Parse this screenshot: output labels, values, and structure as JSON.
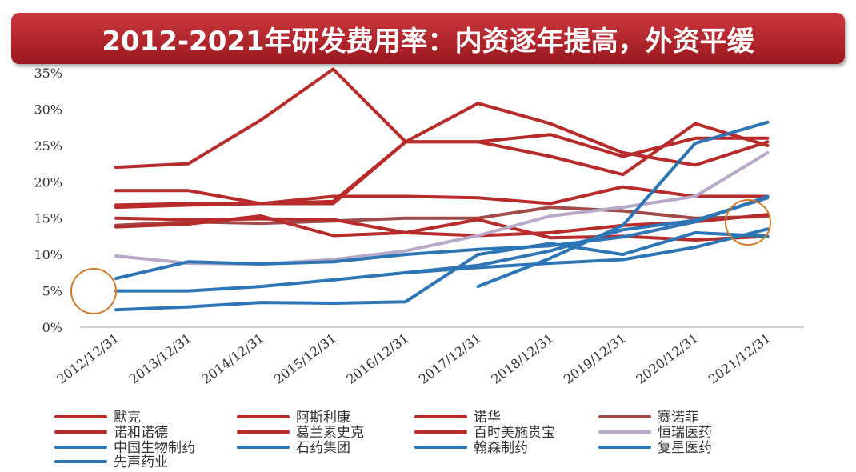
{
  "title": "2012-2021年研发费用率：内资逐年提高，外资平缓",
  "chart_data": {
    "type": "line",
    "title": "2012-2021年研发费用率：内资逐年提高，外资平缓",
    "x": [
      "2012/12/31",
      "2013/12/31",
      "2014/12/31",
      "2015/12/31",
      "2016/12/31",
      "2017/12/31",
      "2018/12/31",
      "2019/12/31",
      "2020/12/31",
      "2021/12/31"
    ],
    "y_ticks": [
      "0%",
      "5%",
      "10%",
      "15%",
      "20%",
      "25%",
      "30%",
      "35%"
    ],
    "ylim": [
      0,
      35
    ],
    "y_unit": "%",
    "grid": false,
    "legend_position": "bottom",
    "series": [
      {
        "name": "默克",
        "color": "#b72b2b",
        "values": [
          16.5,
          16.8,
          17.0,
          17.3,
          25.5,
          25.5,
          23.5,
          21.0,
          28.0,
          25.0
        ]
      },
      {
        "name": "阿斯利康",
        "color": "#b72b2b",
        "values": [
          22.0,
          22.5,
          28.5,
          35.5,
          25.5,
          25.5,
          26.5,
          23.5,
          26.0,
          26.0
        ]
      },
      {
        "name": "诺华",
        "color": "#b72b2b",
        "values": [
          16.8,
          17.0,
          17.0,
          17.0,
          25.5,
          30.8,
          28.0,
          24.0,
          22.3,
          25.5
        ]
      },
      {
        "name": "赛诺菲",
        "color": "#a04a4a",
        "values": [
          14.0,
          14.5,
          14.3,
          14.6,
          15.0,
          15.0,
          16.5,
          16.0,
          15.0,
          15.2
        ]
      },
      {
        "name": "诺和诺德",
        "color": "#b72b2b",
        "values": [
          13.8,
          14.2,
          15.3,
          12.6,
          13.0,
          14.8,
          12.3,
          12.5,
          12.0,
          12.5
        ]
      },
      {
        "name": "葛兰素史克",
        "color": "#b72b2b",
        "values": [
          15.0,
          14.8,
          14.9,
          14.8,
          13.0,
          12.6,
          13.0,
          14.0,
          14.5,
          15.5
        ]
      },
      {
        "name": "百时美施贵宝",
        "color": "#b72b2b",
        "values": [
          18.8,
          18.8,
          17.0,
          18.0,
          18.0,
          17.8,
          17.0,
          19.3,
          18.0,
          18.0
        ]
      },
      {
        "name": "恒瑞医药",
        "color": "#b9a9c9",
        "values": [
          9.8,
          8.8,
          8.7,
          9.3,
          10.5,
          12.6,
          15.3,
          16.5,
          18.0,
          24.0
        ]
      },
      {
        "name": "中国生物制药",
        "color": "#2e75b6",
        "values": [
          6.7,
          9.0,
          8.7,
          9.0,
          10.0,
          10.7,
          11.2,
          12.4,
          14.5,
          18.0
        ]
      },
      {
        "name": "石药集团",
        "color": "#2e75b6",
        "values": [
          5.0,
          5.0,
          5.6,
          6.5,
          7.5,
          8.5,
          10.5,
          13.4,
          14.7,
          17.8
        ]
      },
      {
        "name": "翰森制药",
        "color": "#2e75b6",
        "values": [
          null,
          null,
          null,
          null,
          null,
          5.6,
          9.5,
          14.0,
          25.3,
          28.2
        ]
      },
      {
        "name": "复星医药",
        "color": "#2e75b6",
        "values": [
          null,
          null,
          null,
          null,
          7.5,
          8.2,
          8.8,
          9.3,
          11.0,
          13.5
        ]
      },
      {
        "name": "先声药业",
        "color": "#2e75b6",
        "values": [
          2.4,
          2.8,
          3.4,
          3.3,
          3.5,
          10.0,
          11.5,
          10.0,
          13.0,
          12.5
        ]
      }
    ]
  }
}
